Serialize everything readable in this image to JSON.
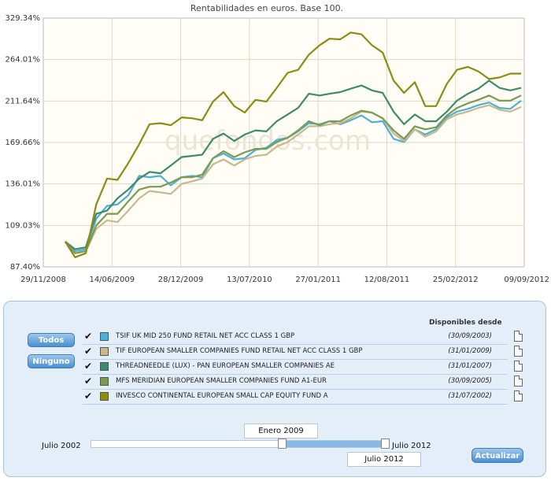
{
  "chart_data": {
    "type": "line",
    "title": "Rentabilidades en euros. Base 100.",
    "watermark": "quefondos.com",
    "x_ticks": [
      "29/11/2008",
      "14/06/2009",
      "28/12/2009",
      "13/07/2010",
      "27/01/2011",
      "12/08/2011",
      "25/02/2012",
      "09/09/2012"
    ],
    "y_ticks": [
      "87.40%",
      "109.03%",
      "136.01%",
      "169.66%",
      "211.64%",
      "264.01%",
      "329.34%"
    ],
    "y_tick_values": [
      87.4,
      109.03,
      136.01,
      169.66,
      211.64,
      264.01,
      329.34
    ],
    "x_range": [
      "2008-11-29",
      "2012-09-09"
    ],
    "grid": true,
    "series": [
      {
        "name": "TSIF UK MID 250 FUND RETAIL NET ACC CLASS 1 GBP",
        "color": "#4fb0d6",
        "dates": [
          "2009-01-31",
          "2009-02-28",
          "2009-03-31",
          "2009-04-30",
          "2009-05-31",
          "2009-06-30",
          "2009-07-31",
          "2009-08-31",
          "2009-09-30",
          "2009-10-31",
          "2009-11-30",
          "2009-12-31",
          "2010-01-31",
          "2010-02-28",
          "2010-03-31",
          "2010-04-30",
          "2010-05-31",
          "2010-06-30",
          "2010-07-31",
          "2010-08-31",
          "2010-09-30",
          "2010-10-31",
          "2010-11-30",
          "2010-12-31",
          "2011-01-31",
          "2011-02-28",
          "2011-03-31",
          "2011-04-30",
          "2011-05-31",
          "2011-06-30",
          "2011-07-31",
          "2011-08-31",
          "2011-09-30",
          "2011-10-31",
          "2011-11-30",
          "2011-12-31",
          "2012-01-31",
          "2012-02-29",
          "2012-03-31",
          "2012-04-30",
          "2012-05-31",
          "2012-06-30",
          "2012-07-31",
          "2012-08-31"
        ],
        "values": [
          100,
          95,
          96,
          113,
          121,
          122,
          128,
          142,
          141,
          142,
          135,
          141,
          142,
          141,
          156,
          160,
          155,
          156,
          163,
          165,
          172,
          174,
          180,
          188,
          187,
          190,
          187,
          191,
          196,
          189,
          190,
          173,
          170,
          182,
          177,
          182,
          194,
          200,
          203,
          207,
          210,
          204,
          203,
          212
        ]
      },
      {
        "name": "TIF EUROPEAN SMALLER COMPANIES FUND RETAIL NET ACC CLASS 1 GBP",
        "color": "#c8b88c",
        "dates": [
          "2009-01-31",
          "2009-02-28",
          "2009-03-31",
          "2009-04-30",
          "2009-05-31",
          "2009-06-30",
          "2009-07-31",
          "2009-08-31",
          "2009-09-30",
          "2009-10-31",
          "2009-11-30",
          "2009-12-31",
          "2010-01-31",
          "2010-02-28",
          "2010-03-31",
          "2010-04-30",
          "2010-05-31",
          "2010-06-30",
          "2010-07-31",
          "2010-08-31",
          "2010-09-30",
          "2010-10-31",
          "2010-11-30",
          "2010-12-31",
          "2011-01-31",
          "2011-02-28",
          "2011-03-31",
          "2011-04-30",
          "2011-05-31",
          "2011-06-30",
          "2011-07-31",
          "2011-08-31",
          "2011-09-30",
          "2011-10-31",
          "2011-11-30",
          "2011-12-31",
          "2012-01-31",
          "2012-02-29",
          "2012-03-31",
          "2012-04-30",
          "2012-05-31",
          "2012-06-30",
          "2012-07-31",
          "2012-08-31"
        ],
        "values": [
          100,
          94,
          95,
          107,
          112,
          111,
          118,
          126,
          131,
          130,
          129,
          136,
          138,
          140,
          151,
          155,
          150,
          155,
          158,
          159,
          166,
          170,
          177,
          185,
          185,
          187,
          188,
          193,
          200,
          199,
          193,
          178,
          171,
          182,
          175,
          180,
          192,
          197,
          200,
          204,
          207,
          202,
          200,
          205
        ]
      },
      {
        "name": "THREADNEEDLE (LUX) - PAN EUROPEAN SMALLER COMPANIES AE",
        "color": "#3f8a6c",
        "dates": [
          "2009-01-31",
          "2009-02-28",
          "2009-03-31",
          "2009-04-30",
          "2009-05-31",
          "2009-06-30",
          "2009-07-31",
          "2009-08-31",
          "2009-09-30",
          "2009-10-31",
          "2009-11-30",
          "2009-12-31",
          "2010-01-31",
          "2010-02-28",
          "2010-03-31",
          "2010-04-30",
          "2010-05-31",
          "2010-06-30",
          "2010-07-31",
          "2010-08-31",
          "2010-09-30",
          "2010-10-31",
          "2010-11-30",
          "2010-12-31",
          "2011-01-31",
          "2011-02-28",
          "2011-03-31",
          "2011-04-30",
          "2011-05-31",
          "2011-06-30",
          "2011-07-31",
          "2011-08-31",
          "2011-09-30",
          "2011-10-31",
          "2011-11-30",
          "2011-12-31",
          "2012-01-31",
          "2012-02-29",
          "2012-03-31",
          "2012-04-30",
          "2012-05-31",
          "2012-06-30",
          "2012-07-31",
          "2012-08-31"
        ],
        "values": [
          100,
          96,
          97,
          116,
          118,
          126,
          132,
          140,
          145,
          144,
          150,
          157,
          158,
          159,
          173,
          178,
          171,
          177,
          181,
          180,
          190,
          197,
          204,
          220,
          218,
          220,
          222,
          226,
          230,
          224,
          221,
          200,
          187,
          197,
          190,
          190,
          200,
          212,
          220,
          226,
          236,
          227,
          224,
          227
        ]
      },
      {
        "name": "MFS MERIDIAN EUROPEAN SMALLER COMPANIES FUND A1-EUR",
        "color": "#7c9a52",
        "dates": [
          "2009-01-31",
          "2009-02-28",
          "2009-03-31",
          "2009-04-30",
          "2009-05-31",
          "2009-06-30",
          "2009-07-31",
          "2009-08-31",
          "2009-09-30",
          "2009-10-31",
          "2009-11-30",
          "2009-12-31",
          "2010-01-31",
          "2010-02-28",
          "2010-03-31",
          "2010-04-30",
          "2010-05-31",
          "2010-06-30",
          "2010-07-31",
          "2010-08-31",
          "2010-09-30",
          "2010-10-31",
          "2010-11-30",
          "2010-12-31",
          "2011-01-31",
          "2011-02-28",
          "2011-03-31",
          "2011-04-30",
          "2011-05-31",
          "2011-06-30",
          "2011-07-31",
          "2011-08-31",
          "2011-09-30",
          "2011-10-31",
          "2011-11-30",
          "2011-12-31",
          "2012-01-31",
          "2012-02-29",
          "2012-03-31",
          "2012-04-30",
          "2012-05-31",
          "2012-06-30",
          "2012-07-31",
          "2012-08-31"
        ],
        "values": [
          100,
          94,
          95,
          109,
          116,
          116,
          124,
          132,
          134,
          134,
          137,
          141,
          141,
          143,
          156,
          162,
          157,
          161,
          164,
          164,
          170,
          174,
          181,
          190,
          186,
          190,
          190,
          196,
          201,
          199,
          193,
          181,
          173,
          185,
          182,
          184,
          196,
          204,
          209,
          213,
          218,
          212,
          212,
          218
        ]
      },
      {
        "name": "INVESCO CONTINENTAL EUROPEAN SMALL CAP EQUITY FUND A",
        "color": "#8f8a14",
        "dates": [
          "2009-01-31",
          "2009-02-28",
          "2009-03-31",
          "2009-04-30",
          "2009-05-31",
          "2009-06-30",
          "2009-07-31",
          "2009-08-31",
          "2009-09-30",
          "2009-10-31",
          "2009-11-30",
          "2009-12-31",
          "2010-01-31",
          "2010-02-28",
          "2010-03-31",
          "2010-04-30",
          "2010-05-31",
          "2010-06-30",
          "2010-07-31",
          "2010-08-31",
          "2010-09-30",
          "2010-10-31",
          "2010-11-30",
          "2010-12-31",
          "2011-01-31",
          "2011-02-28",
          "2011-03-31",
          "2011-04-30",
          "2011-05-31",
          "2011-06-30",
          "2011-07-31",
          "2011-08-31",
          "2011-09-30",
          "2011-10-31",
          "2011-11-30",
          "2011-12-31",
          "2012-01-31",
          "2012-02-29",
          "2012-03-31",
          "2012-04-30",
          "2012-05-31",
          "2012-06-30",
          "2012-07-31",
          "2012-08-31"
        ],
        "values": [
          100,
          92,
          94,
          122,
          140,
          139,
          152,
          168,
          187,
          188,
          186,
          194,
          193,
          191,
          211,
          222,
          206,
          199,
          213,
          211,
          227,
          246,
          250,
          271,
          285,
          295,
          294,
          305,
          302,
          285,
          274,
          236,
          221,
          234,
          206,
          206,
          232,
          250,
          254,
          248,
          238,
          240,
          245,
          245
        ]
      }
    ]
  },
  "controls": {
    "todos_label": "Todos",
    "ninguno_label": "Ninguno",
    "disponibles_header": "Disponibles desde",
    "funds": [
      {
        "name": "TSIF UK MID 250 FUND RETAIL NET ACC CLASS 1 GBP",
        "date": "(30/09/2003)",
        "color": "#4fb0d6",
        "checked": true
      },
      {
        "name": "TIF EUROPEAN SMALLER COMPANIES FUND RETAIL NET ACC CLASS 1 GBP",
        "date": "(31/01/2009)",
        "color": "#c8b88c",
        "checked": true
      },
      {
        "name": "THREADNEEDLE (LUX) - PAN EUROPEAN SMALLER COMPANIES AE",
        "date": "(31/01/2007)",
        "color": "#3f8a6c",
        "checked": true
      },
      {
        "name": "MFS MERIDIAN EUROPEAN SMALLER COMPANIES FUND A1-EUR",
        "date": "(30/09/2005)",
        "color": "#7c9a52",
        "checked": true
      },
      {
        "name": "INVESCO CONTINENTAL EUROPEAN SMALL CAP EQUITY FUND A",
        "date": "(31/07/2002)",
        "color": "#8f8a14",
        "checked": true
      }
    ],
    "range_start_label": "Julio 2002",
    "range_end_label": "Julio 2012",
    "selected_start": "Enero 2009",
    "selected_end": "Julio 2012",
    "update_label": "Actualizar"
  }
}
